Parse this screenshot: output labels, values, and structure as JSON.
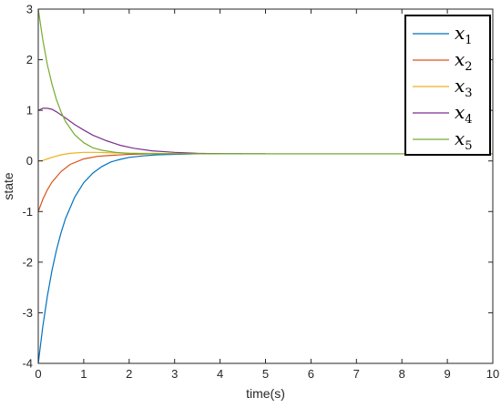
{
  "chart_data": {
    "type": "line",
    "title": "",
    "xlabel": "time(s)",
    "ylabel": "state",
    "xlim": [
      0,
      10
    ],
    "ylim": [
      -4,
      3
    ],
    "xticks": [
      "0",
      "1",
      "2",
      "3",
      "4",
      "5",
      "6",
      "7",
      "8",
      "9",
      "10"
    ],
    "yticks": [
      "-4",
      "-3",
      "-2",
      "-1",
      "0",
      "1",
      "2",
      "3"
    ],
    "grid": false,
    "legend_position": "top-right",
    "series": [
      {
        "name": "x1",
        "symbol": "x",
        "subscript": "1",
        "color": "#0072BD",
        "x": [
          0,
          0.1,
          0.2,
          0.3,
          0.4,
          0.5,
          0.6,
          0.8,
          1.0,
          1.2,
          1.4,
          1.6,
          1.8,
          2.0,
          2.3,
          2.6,
          3.0,
          3.5,
          4.0,
          4.5
        ],
        "y": [
          -4.0,
          -3.27,
          -2.67,
          -2.17,
          -1.76,
          -1.42,
          -1.14,
          -0.72,
          -0.43,
          -0.24,
          -0.11,
          -0.02,
          0.03,
          0.07,
          0.1,
          0.12,
          0.13,
          0.14,
          0.14,
          0.14
        ]
      },
      {
        "name": "x2",
        "symbol": "x",
        "subscript": "2",
        "color": "#D95319",
        "x": [
          0,
          0.1,
          0.2,
          0.3,
          0.5,
          0.7,
          1.0,
          1.3,
          1.6,
          2.0,
          2.5,
          3.0,
          3.5,
          4.0
        ],
        "y": [
          -1.0,
          -0.76,
          -0.57,
          -0.42,
          -0.21,
          -0.07,
          0.04,
          0.09,
          0.11,
          0.13,
          0.14,
          0.14,
          0.14,
          0.14
        ]
      },
      {
        "name": "x3",
        "symbol": "x",
        "subscript": "3",
        "color": "#EDB120",
        "x": [
          0,
          0.1,
          0.2,
          0.3,
          0.5,
          0.7,
          1.0,
          1.3,
          1.6,
          2.0,
          2.5,
          3.0,
          3.5
        ],
        "y": [
          0.0,
          0.01,
          0.04,
          0.07,
          0.12,
          0.15,
          0.17,
          0.17,
          0.16,
          0.15,
          0.15,
          0.14,
          0.14
        ]
      },
      {
        "name": "x4",
        "symbol": "x",
        "subscript": "4",
        "color": "#7E2F8E",
        "x": [
          0,
          0.05,
          0.1,
          0.15,
          0.2,
          0.3,
          0.4,
          0.6,
          0.8,
          1.0,
          1.2,
          1.5,
          1.8,
          2.1,
          2.5,
          3.0,
          3.5,
          4.0,
          4.5,
          5.0
        ],
        "y": [
          1.0,
          1.02,
          1.04,
          1.04,
          1.04,
          1.02,
          0.97,
          0.85,
          0.72,
          0.61,
          0.51,
          0.4,
          0.31,
          0.25,
          0.2,
          0.17,
          0.15,
          0.14,
          0.14,
          0.14
        ]
      },
      {
        "name": "x5",
        "symbol": "x",
        "subscript": "5",
        "color": "#77AC30",
        "x": [
          0,
          0.1,
          0.2,
          0.3,
          0.4,
          0.5,
          0.6,
          0.8,
          1.0,
          1.2,
          1.4,
          1.7,
          2.0,
          2.5,
          3.0,
          3.5,
          4.0,
          10.0
        ],
        "y": [
          3.0,
          2.39,
          1.9,
          1.52,
          1.21,
          0.97,
          0.78,
          0.52,
          0.36,
          0.26,
          0.21,
          0.17,
          0.15,
          0.14,
          0.14,
          0.14,
          0.14,
          0.14
        ]
      }
    ]
  }
}
